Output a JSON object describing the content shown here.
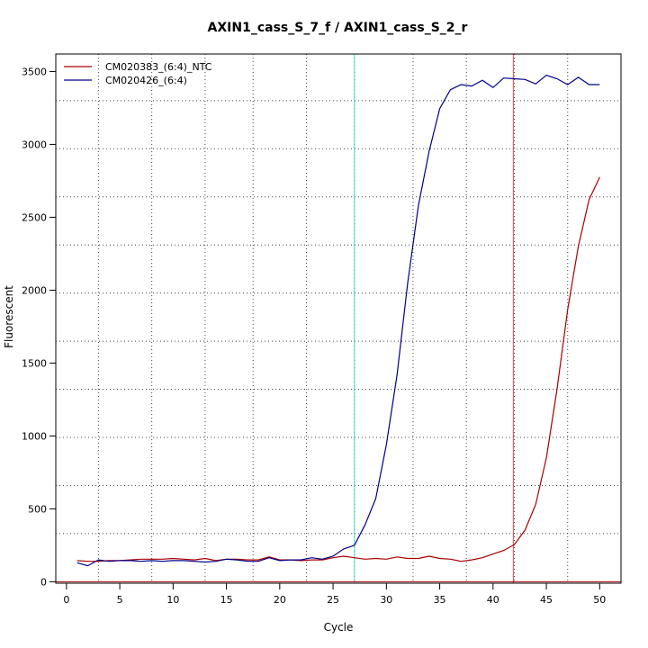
{
  "chart_data": {
    "type": "line",
    "title": "AXIN1_cass_S_7_f / AXIN1_cass_S_2_r",
    "xlabel": "Cycle",
    "ylabel": "Fluorescent",
    "xlim": [
      -1,
      52
    ],
    "ylim": [
      -10,
      3620
    ],
    "x_ticks": [
      0,
      5,
      10,
      15,
      20,
      25,
      30,
      35,
      40,
      45,
      50
    ],
    "y_ticks": [
      0,
      500,
      1000,
      1500,
      2000,
      2500,
      3000,
      3500
    ],
    "grid": true,
    "legend_position": "top-left",
    "x": [
      1,
      2,
      3,
      4,
      5,
      6,
      7,
      8,
      9,
      10,
      11,
      12,
      13,
      14,
      15,
      16,
      17,
      18,
      19,
      20,
      21,
      22,
      23,
      24,
      25,
      26,
      27,
      28,
      29,
      30,
      31,
      32,
      33,
      34,
      35,
      36,
      37,
      38,
      39,
      40,
      41,
      42,
      43,
      44,
      45,
      46,
      47,
      48,
      49,
      50
    ],
    "series": [
      {
        "name": "CM020383_(6:4)_NTC",
        "color": "#aa0000",
        "values": [
          145,
          140,
          140,
          145,
          145,
          150,
          155,
          155,
          155,
          160,
          155,
          150,
          160,
          145,
          155,
          155,
          150,
          150,
          170,
          150,
          150,
          145,
          150,
          150,
          165,
          175,
          165,
          155,
          160,
          155,
          170,
          160,
          160,
          175,
          160,
          155,
          140,
          150,
          165,
          190,
          215,
          255,
          355,
          530,
          850,
          1320,
          1870,
          2300,
          2620,
          2775
        ]
      },
      {
        "name": "CM020426_(6:4)",
        "color": "#00008b",
        "values": [
          130,
          110,
          150,
          140,
          145,
          145,
          140,
          145,
          140,
          145,
          145,
          140,
          135,
          140,
          155,
          150,
          140,
          140,
          165,
          145,
          150,
          150,
          165,
          155,
          175,
          225,
          250,
          390,
          570,
          940,
          1420,
          2050,
          2580,
          2950,
          3245,
          3375,
          3410,
          3400,
          3440,
          3390,
          3455,
          3450,
          3445,
          3415,
          3475,
          3450,
          3410,
          3460,
          3410,
          3410
        ]
      }
    ],
    "threshold_line": {
      "y": 0,
      "color": "#aa0000"
    },
    "vertical_lines": [
      {
        "x": 27,
        "color": "#40e0d0"
      },
      {
        "x": 41.9,
        "color": "#c05050"
      }
    ],
    "minor_grid_x": [
      3,
      8,
      13,
      17.5,
      22.5,
      27,
      32.5,
      37.5,
      42,
      47
    ],
    "minor_grid_y": [
      330,
      660,
      990,
      1320,
      1650,
      1980,
      2310,
      2640,
      2970,
      3300
    ]
  }
}
